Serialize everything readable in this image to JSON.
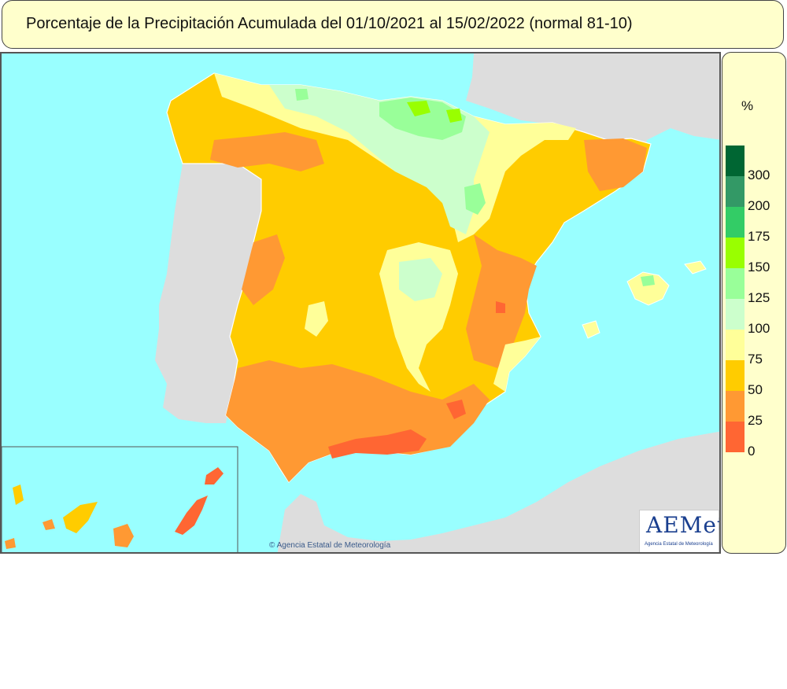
{
  "title": "Porcentaje de la Precipitación Acumulada del 01/10/2021 al 15/02/2022 (normal 81-10)",
  "legend": {
    "unit": "%",
    "classes": [
      {
        "label": "300",
        "color": "#006633"
      },
      {
        "label": "200",
        "color": "#339966"
      },
      {
        "label": "175",
        "color": "#33cc66"
      },
      {
        "label": "150",
        "color": "#99ff00"
      },
      {
        "label": "125",
        "color": "#99ff99"
      },
      {
        "label": "100",
        "color": "#ccffcc"
      },
      {
        "label": "75",
        "color": "#ffff99"
      },
      {
        "label": "50",
        "color": "#ffcc00"
      },
      {
        "label": "25",
        "color": "#ff9933"
      },
      {
        "label": "0",
        "color": "#ff6633"
      }
    ]
  },
  "map": {
    "sea_color": "#99ffff",
    "foreign_land_color": "#dddddd",
    "dominant_color": "#ffcc00"
  },
  "credit": "© Agencia Estatal de Meteorología",
  "logo": {
    "name": "AEMet",
    "subtitle": "Agencia Estatal de Meteorología"
  }
}
